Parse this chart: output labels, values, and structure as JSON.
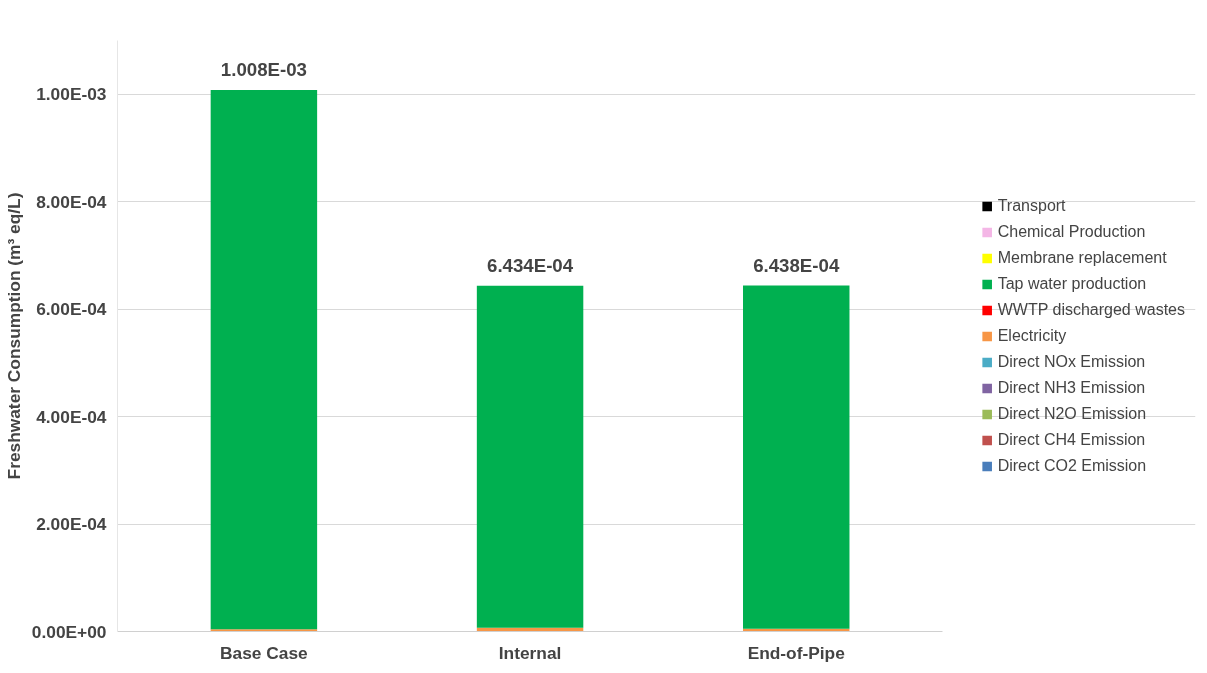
{
  "chart_data": {
    "type": "bar",
    "stacked": true,
    "ylabel": "Freshwater Consumption (m³ eq/L)",
    "categories": [
      "Base Case",
      "Internal",
      "End-of-Pipe"
    ],
    "series": [
      {
        "name": "Direct CO2 Emission",
        "color": "#4a7ebb",
        "values": [
          0,
          0,
          0
        ]
      },
      {
        "name": "Direct CH4 Emission",
        "color": "#c0504d",
        "values": [
          0,
          0,
          0
        ]
      },
      {
        "name": "Direct N2O Emission",
        "color": "#9bbb59",
        "values": [
          0,
          0,
          0
        ]
      },
      {
        "name": "Direct NH3 Emission",
        "color": "#8064a2",
        "values": [
          0,
          0,
          0
        ]
      },
      {
        "name": "Direct NOx Emission",
        "color": "#4bacc6",
        "values": [
          0,
          0,
          0
        ]
      },
      {
        "name": "Electricity",
        "color": "#f79646",
        "values": [
          4e-06,
          7e-06,
          5e-06
        ]
      },
      {
        "name": "WWTP discharged wastes",
        "color": "#ff0000",
        "values": [
          0,
          0,
          0
        ]
      },
      {
        "name": "Tap water production",
        "color": "#00b050",
        "values": [
          0.001004,
          0.0006364,
          0.0006388
        ]
      },
      {
        "name": "Membrane replacement",
        "color": "#ffff00",
        "values": [
          0,
          0,
          0
        ]
      },
      {
        "name": "Chemical Production",
        "color": "#f4b6e6",
        "values": [
          0,
          null,
          null
        ]
      },
      {
        "name": "Transport",
        "color": "#000000",
        "values": [
          0,
          0,
          0
        ]
      }
    ],
    "totals": [
      "1.008E-03",
      "6.434E-04",
      "6.438E-04"
    ],
    "ylim": [
      0,
      0.0011
    ],
    "yticks": [
      {
        "value": 0,
        "label": "0.00E+00"
      },
      {
        "value": 0.0002,
        "label": "2.00E-04"
      },
      {
        "value": 0.0004,
        "label": "4.00E-04"
      },
      {
        "value": 0.0006,
        "label": "6.00E-04"
      },
      {
        "value": 0.0008,
        "label": "8.00E-04"
      },
      {
        "value": 0.001,
        "label": "1.00E-03"
      }
    ],
    "grid": "y",
    "legend": "right"
  }
}
